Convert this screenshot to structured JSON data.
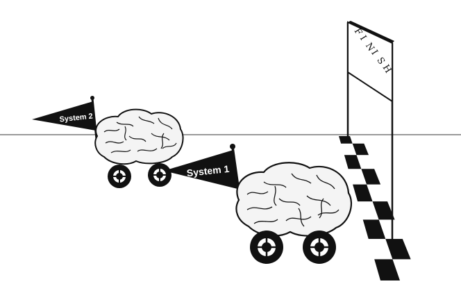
{
  "colors": {
    "ink": "#111111",
    "paper": "#ffffff",
    "brain_fill": "#f4f4f4"
  },
  "racers": [
    {
      "label": "System 2",
      "position": "back",
      "icon": "brain-car-icon"
    },
    {
      "label": "System 1",
      "position": "front",
      "icon": "brain-car-icon"
    }
  ],
  "finish": {
    "banner_letters": [
      "F",
      "I",
      "N",
      "I",
      "S",
      "H"
    ],
    "icon": "checkered-finish-line-icon"
  }
}
